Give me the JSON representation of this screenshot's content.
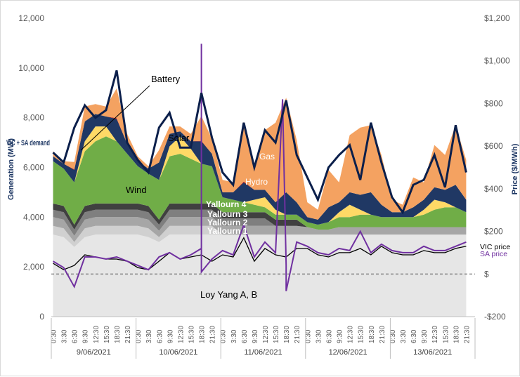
{
  "chart_data": {
    "type": "area",
    "y_left": {
      "label": "Generation (MW)",
      "ticks": [
        "0",
        "2,000",
        "4,000",
        "6,000",
        "8,000",
        "10,000",
        "12,000"
      ],
      "range": [
        0,
        12000
      ]
    },
    "y_right": {
      "label": "Price ($/MWh)",
      "ticks": [
        "-$200",
        "$",
        "$200",
        "$400",
        "$600",
        "$800",
        "$1,000",
        "$1,200"
      ],
      "range": [
        -200,
        1200
      ]
    },
    "x_tick_labels": [
      "0:30",
      "3:30",
      "6:30",
      "9:30",
      "12:30",
      "15:30",
      "18:30",
      "21:30"
    ],
    "dates": [
      "9/06/2021",
      "10/06/2021",
      "11/06/2021",
      "12/06/2021",
      "13/06/2021"
    ],
    "hours": [
      0.5,
      3.5,
      6.5,
      9.5,
      12.5,
      15.5,
      18.5,
      21.5
    ],
    "stack_order": [
      "Loy Yang A, B",
      "Yallourn 1",
      "Yallourn 2",
      "Yallourn 3",
      "Yallourn 4",
      "Wind",
      "Solar",
      "Hydro",
      "Battery",
      "Gas"
    ],
    "series": [
      {
        "name": "Loy Yang A, B",
        "color": "#e6e6e6",
        "values": [
          [
            3300,
            3200,
            2800,
            3200,
            3300,
            3300,
            3300,
            3300
          ],
          [
            3300,
            3200,
            3000,
            3300,
            3300,
            3300,
            3300,
            3300
          ],
          [
            3300,
            3300,
            3300,
            3300,
            3300,
            3300,
            3300,
            3300
          ],
          [
            3300,
            3300,
            3300,
            3300,
            3300,
            3300,
            3300,
            3300
          ],
          [
            3300,
            3300,
            3300,
            3300,
            3300,
            3300,
            3300,
            3300
          ]
        ]
      },
      {
        "name": "Yallourn 1",
        "color": "#d0d0d0",
        "values": [
          [
            350,
            350,
            200,
            350,
            350,
            350,
            350,
            350
          ],
          [
            350,
            350,
            200,
            350,
            350,
            350,
            350,
            350
          ],
          [
            0,
            0,
            0,
            0,
            0,
            0,
            0,
            0
          ],
          [
            0,
            0,
            0,
            0,
            0,
            0,
            0,
            0
          ],
          [
            0,
            0,
            0,
            0,
            0,
            0,
            0,
            0
          ]
        ]
      },
      {
        "name": "Yallourn 2",
        "color": "#a6a6a6",
        "values": [
          [
            350,
            350,
            250,
            350,
            350,
            350,
            350,
            350
          ],
          [
            350,
            350,
            250,
            350,
            350,
            350,
            350,
            350
          ],
          [
            350,
            350,
            350,
            350,
            350,
            350,
            350,
            350
          ],
          [
            300,
            200,
            200,
            300,
            300,
            300,
            300,
            300
          ],
          [
            300,
            300,
            300,
            300,
            300,
            300,
            300,
            300
          ]
        ]
      },
      {
        "name": "Yallourn 3",
        "color": "#7f7f7f",
        "values": [
          [
            300,
            300,
            250,
            300,
            300,
            300,
            300,
            300
          ],
          [
            300,
            300,
            250,
            300,
            300,
            300,
            300,
            300
          ],
          [
            300,
            300,
            300,
            300,
            300,
            0,
            0,
            0
          ],
          [
            0,
            0,
            0,
            0,
            0,
            0,
            0,
            0
          ],
          [
            0,
            0,
            0,
            0,
            0,
            0,
            0,
            0
          ]
        ]
      },
      {
        "name": "Yallourn 4",
        "color": "#404040",
        "values": [
          [
            250,
            250,
            200,
            250,
            250,
            250,
            250,
            250
          ],
          [
            250,
            250,
            200,
            250,
            250,
            250,
            250,
            250
          ],
          [
            250,
            250,
            250,
            250,
            250,
            250,
            250,
            250
          ],
          [
            0,
            0,
            0,
            0,
            0,
            0,
            0,
            0
          ],
          [
            0,
            0,
            0,
            0,
            0,
            0,
            0,
            0
          ]
        ]
      },
      {
        "name": "Wind",
        "color": "#70ad47",
        "values": [
          [
            1700,
            1500,
            1700,
            2200,
            2500,
            2700,
            2500,
            2000
          ],
          [
            1500,
            1300,
            1600,
            1900,
            2000,
            1800,
            1600,
            1500
          ],
          [
            600,
            500,
            400,
            300,
            200,
            200,
            200,
            200
          ],
          [
            200,
            200,
            300,
            400,
            400,
            500,
            500,
            400
          ],
          [
            400,
            400,
            400,
            500,
            700,
            800,
            800,
            600
          ]
        ]
      },
      {
        "name": "Solar",
        "color": "#ffd966",
        "values": [
          [
            0,
            0,
            0,
            400,
            600,
            400,
            0,
            0
          ],
          [
            0,
            0,
            0,
            400,
            700,
            400,
            0,
            0
          ],
          [
            0,
            0,
            0,
            200,
            400,
            200,
            0,
            0
          ],
          [
            0,
            0,
            0,
            200,
            500,
            200,
            0,
            0
          ],
          [
            0,
            0,
            0,
            200,
            400,
            200,
            0,
            0
          ]
        ]
      },
      {
        "name": "Hydro",
        "color": "#203864",
        "values": [
          [
            200,
            200,
            500,
            800,
            500,
            400,
            900,
            400
          ],
          [
            200,
            200,
            700,
            500,
            200,
            300,
            900,
            500
          ],
          [
            200,
            300,
            800,
            400,
            300,
            300,
            900,
            500
          ],
          [
            200,
            200,
            600,
            400,
            500,
            600,
            900,
            500
          ],
          [
            200,
            200,
            400,
            400,
            500,
            500,
            900,
            500
          ]
        ]
      },
      {
        "name": "Battery",
        "color": "#c00000",
        "values": [
          [
            0,
            0,
            20,
            0,
            0,
            0,
            30,
            0
          ],
          [
            0,
            0,
            0,
            0,
            0,
            0,
            20,
            0
          ],
          [
            0,
            0,
            30,
            0,
            0,
            0,
            0,
            0
          ],
          [
            0,
            0,
            0,
            0,
            0,
            0,
            0,
            0
          ],
          [
            0,
            0,
            0,
            0,
            0,
            0,
            0,
            0
          ]
        ]
      },
      {
        "name": "Gas",
        "color": "#f4a261",
        "values": [
          [
            200,
            100,
            300,
            600,
            400,
            400,
            1200,
            400
          ],
          [
            200,
            100,
            500,
            300,
            200,
            300,
            1000,
            600
          ],
          [
            500,
            400,
            2400,
            1000,
            2400,
            3200,
            3800,
            2500
          ],
          [
            600,
            400,
            1500,
            800,
            2300,
            2700,
            2700,
            2000
          ],
          [
            500,
            300,
            1200,
            700,
            1700,
            1400,
            2400,
            1600
          ]
        ]
      }
    ],
    "lines": [
      {
        "name": "VIC + SA demand",
        "color": "#0b1f4b",
        "axis": "left",
        "values": [
          [
            6600,
            6200,
            7600,
            8500,
            8000,
            8300,
            9900,
            7000
          ],
          [
            6300,
            5800,
            7600,
            8200,
            6800,
            6800,
            9000,
            7200
          ],
          [
            5800,
            5300,
            7800,
            6000,
            7500,
            7000,
            8700,
            6500
          ],
          [
            5600,
            4700,
            6000,
            6500,
            6900,
            5500,
            7800,
            6200
          ],
          [
            4800,
            4200,
            5300,
            5500,
            6500,
            5200,
            7700,
            5800
          ]
        ]
      },
      {
        "name": "VIC price",
        "color": "#000000",
        "axis": "right",
        "label": "VIC price",
        "values": [
          [
            50,
            20,
            40,
            90,
            80,
            70,
            70,
            60
          ],
          [
            30,
            20,
            60,
            100,
            70,
            80,
            90,
            60
          ],
          [
            90,
            80,
            170,
            60,
            120,
            90,
            80,
            120
          ],
          [
            120,
            90,
            80,
            100,
            100,
            120,
            90,
            130
          ],
          [
            100,
            90,
            90,
            110,
            100,
            100,
            120,
            130
          ]
        ]
      },
      {
        "name": "SA price",
        "color": "#7030a0",
        "axis": "right",
        "label": "SA price",
        "values": [
          [
            60,
            30,
            -60,
            80,
            80,
            70,
            80,
            60
          ],
          [
            40,
            20,
            80,
            100,
            70,
            90,
            120,
            70
          ],
          [
            110,
            90,
            230,
            80,
            150,
            100,
            40,
            150
          ],
          [
            130,
            100,
            90,
            120,
            110,
            200,
            100,
            140
          ],
          [
            110,
            100,
            100,
            130,
            110,
            110,
            130,
            150
          ]
        ]
      }
    ],
    "price_spikes": [
      {
        "series": "SA price",
        "day": 1,
        "hour": 18.5,
        "value": 1080
      },
      {
        "series": "SA price",
        "day": 1,
        "hour": 18.5,
        "value": 10
      },
      {
        "series": "SA price",
        "day": 2,
        "hour": 17.5,
        "value": 820
      },
      {
        "series": "SA price",
        "day": 2,
        "hour": 18.5,
        "value": -80
      }
    ],
    "zero_price_reference": "dashed",
    "legend": "inline"
  },
  "labels": {
    "battery": "Battery",
    "solar": "Solar",
    "wind": "Wind",
    "gas": "Gas",
    "hydro": "Hydro",
    "yallourn4": "Yallourn 4",
    "yallourn3": "Yallourn 3",
    "yallourn2": "Yallourn 2",
    "yallourn1": "Yallourn 1",
    "loyyang": "Loy Yang A, B",
    "demand": "VIC + SA demand",
    "vic_price": "VIC price",
    "sa_price": "SA price"
  },
  "colors": {
    "neg_tick": "#ff0000",
    "axis_title": "#1f3864"
  }
}
